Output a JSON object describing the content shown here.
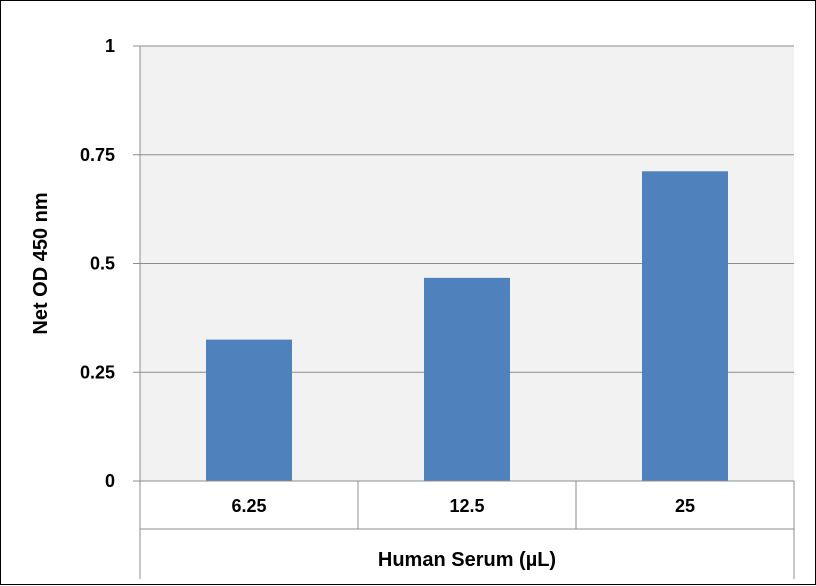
{
  "chart_data": {
    "type": "bar",
    "categories": [
      "6.25",
      "12.5",
      "25"
    ],
    "values": [
      0.325,
      0.467,
      0.712
    ],
    "xlabel": "Human Serum (µL)",
    "ylabel": "Net OD 450 nm",
    "ylim": [
      0,
      1
    ],
    "yticks": [
      "0",
      "0.25",
      "0.5",
      "0.75",
      "1"
    ],
    "grid": true,
    "legend": "none",
    "colors": {
      "bar": "#4F81BD",
      "plot_background": "#F2F2F2",
      "gridline": "#8C8C8C"
    }
  }
}
